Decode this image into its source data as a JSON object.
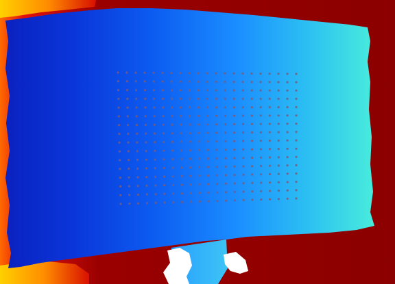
{
  "image": {
    "kind": "depth-map",
    "colormap": "jet",
    "colors": {
      "background_far": "#8b0000",
      "panel_left": "#0a2fcf",
      "panel_mid": "#1e90ff",
      "panel_right": "#40e6e0",
      "dot_pattern": "#7a5a7a",
      "invalid_pixels": "#ffffff",
      "corner_near": "#ffb000"
    },
    "dot_grid": {
      "columns": 21,
      "rows": 16
    }
  }
}
